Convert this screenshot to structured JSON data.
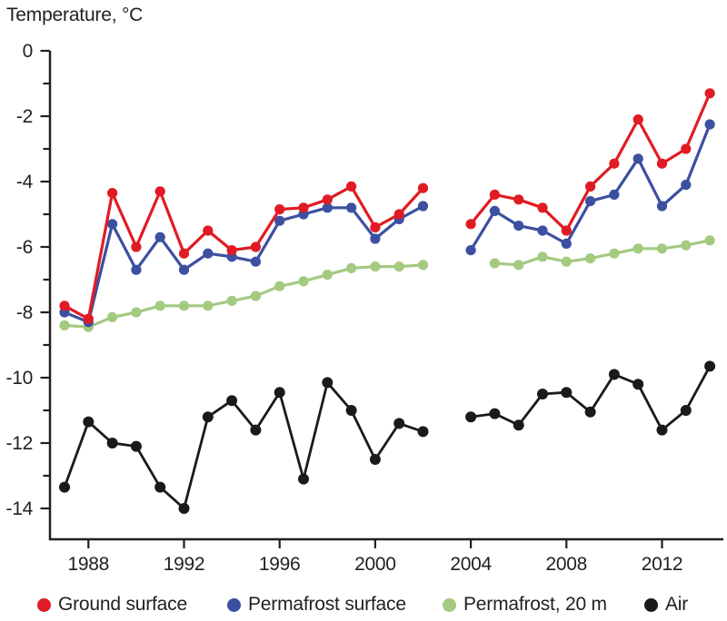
{
  "title": "Temperature, °C",
  "chart_data": {
    "type": "line",
    "title": "Temperature, °C",
    "xlabel": "",
    "ylabel": "Temperature, °C",
    "grid": false,
    "legend_position": "bottom",
    "axis_color": "#231f20",
    "xlim": [
      1986.4,
      2014.6
    ],
    "ylim": [
      0,
      -14.9
    ],
    "x_ticks": [
      1988,
      1992,
      1996,
      2000,
      2004,
      2008,
      2012
    ],
    "y_ticks_major": [
      0,
      -2,
      -4,
      -6,
      -8,
      -10,
      -12,
      -14
    ],
    "y_ticks_minor": [
      -1,
      -3,
      -5,
      -7,
      -9,
      -11,
      -13
    ],
    "x": [
      1987,
      1988,
      1989,
      1990,
      1991,
      1992,
      1993,
      1994,
      1995,
      1996,
      1997,
      1998,
      1999,
      2000,
      2001,
      2002,
      2003,
      2004,
      2005,
      2006,
      2007,
      2008,
      2009,
      2010,
      2011,
      2012,
      2013,
      2014
    ],
    "series": [
      {
        "name": "Ground surface",
        "color": "#e11b23",
        "values": [
          -7.8,
          -8.2,
          -4.35,
          -6.0,
          -4.3,
          -6.2,
          -5.5,
          -6.1,
          -6.0,
          -4.85,
          -4.8,
          -4.55,
          -4.15,
          -5.4,
          -5.0,
          -4.2,
          null,
          -5.3,
          -4.4,
          -4.55,
          -4.8,
          -5.5,
          -4.15,
          -3.45,
          -2.1,
          -3.45,
          -3.0,
          -1.3
        ]
      },
      {
        "name": "Permafrost surface",
        "color": "#3c4fa1",
        "values": [
          -8.0,
          -8.3,
          -5.3,
          -6.7,
          -5.7,
          -6.7,
          -6.2,
          -6.3,
          -6.45,
          -5.2,
          -5.0,
          -4.8,
          -4.8,
          -5.75,
          -5.15,
          -4.75,
          null,
          -6.1,
          -4.9,
          -5.35,
          -5.5,
          -5.9,
          -4.6,
          -4.4,
          -3.3,
          -4.75,
          -4.1,
          -2.25
        ]
      },
      {
        "name": "Permafrost, 20 m",
        "color": "#a4ca80",
        "values": [
          -8.4,
          -8.45,
          -8.15,
          -8.0,
          -7.8,
          -7.8,
          -7.8,
          -7.65,
          -7.5,
          -7.2,
          -7.05,
          -6.85,
          -6.65,
          -6.6,
          -6.6,
          -6.55,
          null,
          null,
          -6.5,
          -6.55,
          -6.3,
          -6.45,
          -6.35,
          -6.2,
          -6.05,
          -6.05,
          -5.95,
          -5.8
        ]
      },
      {
        "name": "Air",
        "color": "#1a1a1a",
        "values": [
          -13.35,
          -11.35,
          -12.0,
          -12.1,
          -13.35,
          -14.0,
          -11.2,
          -10.7,
          -11.6,
          -10.45,
          -13.1,
          -10.15,
          -11.0,
          -12.5,
          -11.4,
          -11.65,
          null,
          -11.2,
          -11.1,
          -11.45,
          -10.5,
          -10.45,
          -11.05,
          -9.9,
          -10.2,
          -11.6,
          -11.0,
          -9.65
        ]
      }
    ]
  }
}
